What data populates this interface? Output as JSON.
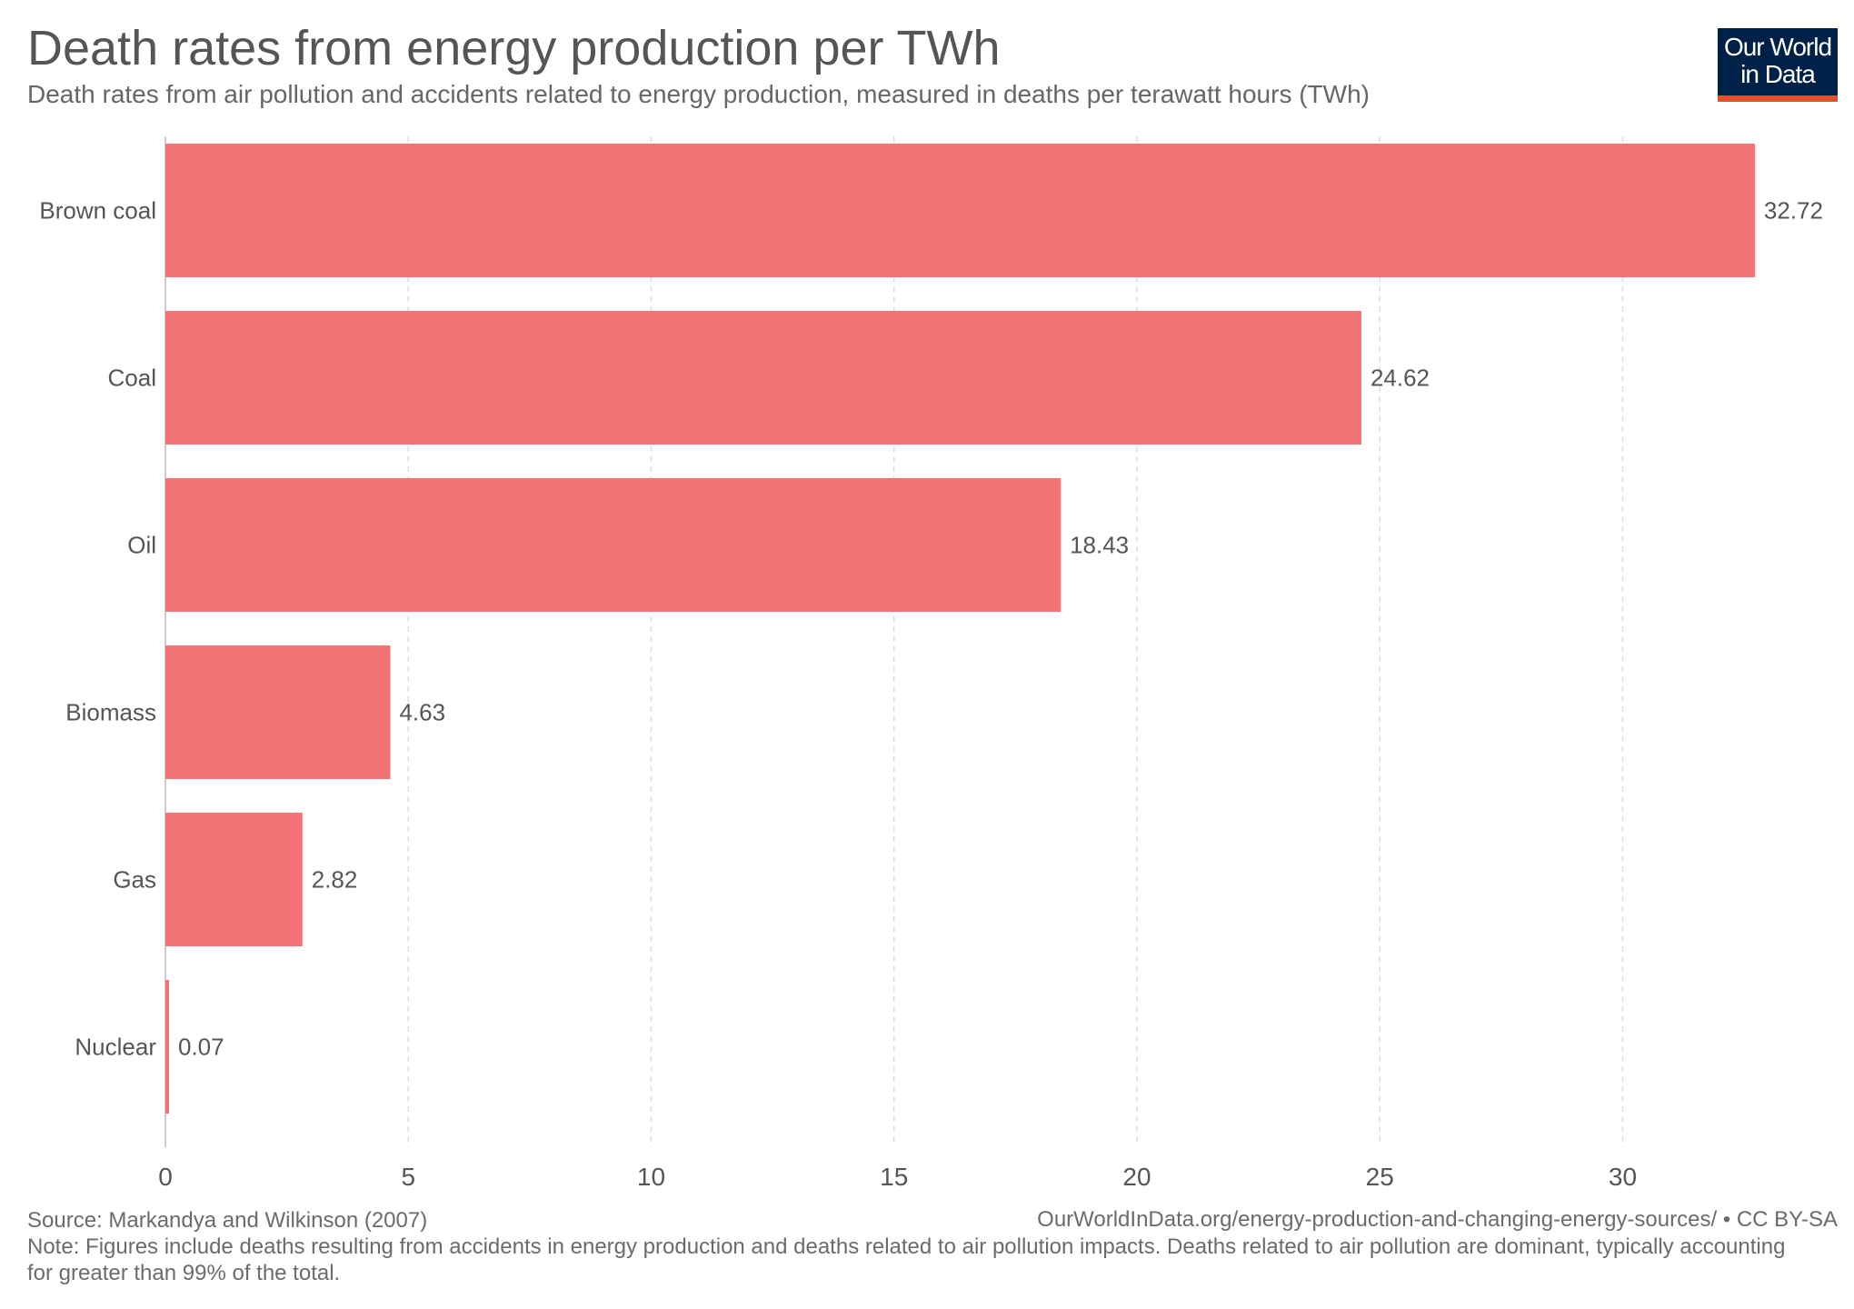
{
  "header": {
    "title": "Death rates from energy production per TWh",
    "subtitle": "Death rates from air pollution and accidents related to energy production, measured in deaths per terawatt hours (TWh)"
  },
  "logo": {
    "line1": "Our World",
    "line2": "in Data",
    "bg_color": "#002147",
    "accent_color": "#e54e2b"
  },
  "footer": {
    "source": "Source: Markandya and Wilkinson (2007)",
    "url": "OurWorldInData.org/energy-production-and-changing-energy-sources/ • CC BY-SA",
    "note": "Note: Figures include deaths resulting from accidents in energy production and deaths related to air pollution impacts. Deaths related to air pollution are dominant, typically accounting for greater than 99% of the total."
  },
  "chart_data": {
    "type": "bar",
    "orientation": "horizontal",
    "categories": [
      "Brown coal",
      "Coal",
      "Oil",
      "Biomass",
      "Gas",
      "Nuclear"
    ],
    "values": [
      32.72,
      24.62,
      18.43,
      4.63,
      2.82,
      0.07
    ],
    "value_labels": [
      "32.72",
      "24.62",
      "18.43",
      "4.63",
      "2.82",
      "0.07"
    ],
    "xlim": [
      0,
      33
    ],
    "xticks": [
      0,
      5,
      10,
      15,
      20,
      25,
      30
    ],
    "xtick_labels": [
      "0",
      "5",
      "10",
      "15",
      "20",
      "25",
      "30"
    ],
    "grid": true,
    "bar_color": "#f27275"
  }
}
